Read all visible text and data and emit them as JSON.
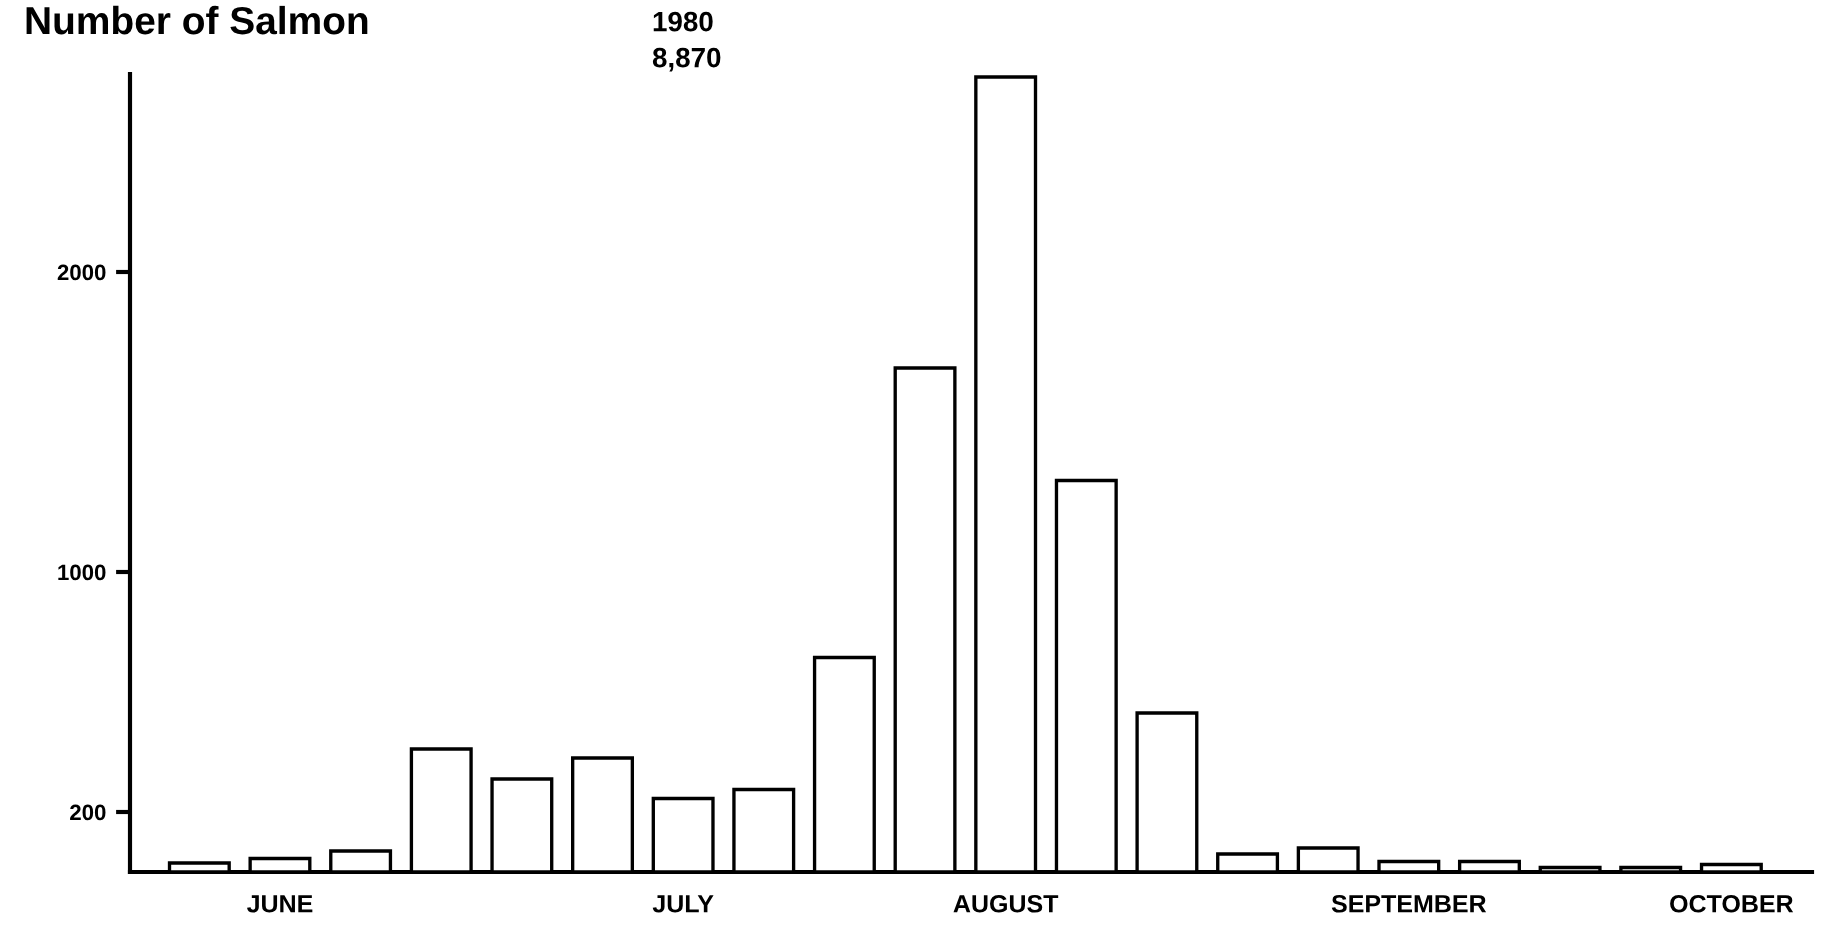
{
  "chart_data": {
    "type": "bar",
    "title": "Number of Salmon",
    "subtitle": "1980",
    "annotations": [
      "8,870"
    ],
    "categories": [
      null,
      "JUNE",
      null,
      null,
      null,
      null,
      "JULY",
      null,
      null,
      null,
      "AUGUST",
      null,
      null,
      null,
      null,
      "SEPTEMBER",
      null,
      null,
      null,
      "OCTOBER"
    ],
    "values": [
      30,
      45,
      70,
      410,
      310,
      380,
      245,
      275,
      715,
      1680,
      2650,
      1305,
      530,
      60,
      80,
      35,
      35,
      15,
      15,
      25
    ],
    "color": "#ffffff",
    "ylim": [
      0,
      2660
    ],
    "yticks": [
      200,
      1000,
      2000
    ],
    "grid": false,
    "legend": false
  }
}
